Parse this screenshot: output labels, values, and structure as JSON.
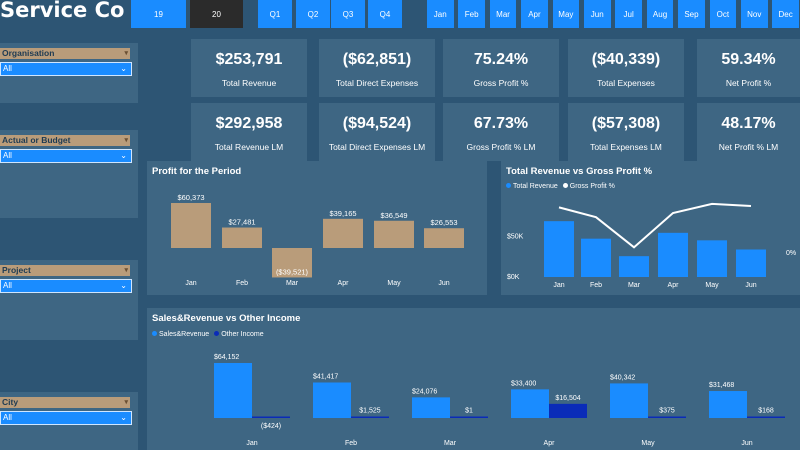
{
  "app": {
    "title": "Service Co"
  },
  "years": [
    "19",
    "20"
  ],
  "quarters": [
    "Q1",
    "Q2",
    "Q3",
    "Q4"
  ],
  "months": [
    "Jan",
    "Feb",
    "Mar",
    "Apr",
    "May",
    "Jun",
    "Jul",
    "Aug",
    "Sep",
    "Oct",
    "Nov",
    "Dec"
  ],
  "slicers": [
    {
      "label": "Organisation",
      "value": "All"
    },
    {
      "label": "Actual or Budget",
      "value": "All"
    },
    {
      "label": "Project",
      "value": "All"
    },
    {
      "label": "City",
      "value": "All"
    }
  ],
  "kpis": [
    {
      "value": "$253,791",
      "label": "Total Revenue"
    },
    {
      "value": "($62,851)",
      "label": "Total Direct Expenses"
    },
    {
      "value": "75.24%",
      "label": "Gross Profit %"
    },
    {
      "value": "($40,339)",
      "label": "Total Expenses"
    },
    {
      "value": "59.34%",
      "label": "Net Profit %"
    },
    {
      "value": "$292,958",
      "label": "Total Revenue LM"
    },
    {
      "value": "($94,524)",
      "label": "Total Direct Expenses LM"
    },
    {
      "value": "67.73%",
      "label": "Gross Profit % LM"
    },
    {
      "value": "($57,308)",
      "label": "Total Expenses LM"
    },
    {
      "value": "48.17%",
      "label": "Net Profit % LM"
    }
  ],
  "colors": {
    "background": "#2d5574",
    "panel": "#3e6683",
    "accent": "#1a8cff",
    "tan": "#b99c7a",
    "navy": "#0a2bb8"
  },
  "chart_data": [
    {
      "type": "bar",
      "title": "Profit for the Period",
      "categories": [
        "Jan",
        "Feb",
        "Mar",
        "Apr",
        "May",
        "Jun"
      ],
      "values": [
        60373,
        27481,
        -39521,
        39165,
        36549,
        26553
      ],
      "data_labels": [
        "$60,373",
        "$27,481",
        "($39,521)",
        "$39,165",
        "$36,549",
        "$26,553"
      ],
      "grid": false
    },
    {
      "type": "bar",
      "title": "Total Revenue vs Gross Profit %",
      "categories": [
        "Jan",
        "Feb",
        "Mar",
        "Apr",
        "May",
        "Jun"
      ],
      "series": [
        {
          "name": "Total Revenue",
          "type": "bar",
          "values": [
            67000,
            46000,
            25000,
            53000,
            44000,
            33000
          ]
        },
        {
          "name": "Gross Profit %",
          "type": "line",
          "values": [
            0.88,
            0.74,
            0.31,
            0.8,
            0.93,
            0.9
          ]
        }
      ],
      "yticks": [
        "$0K",
        "$50K"
      ],
      "y2ticks": [
        "",
        "0%"
      ],
      "ylim": [
        0,
        90000
      ],
      "legend": "top-left"
    },
    {
      "type": "bar",
      "title": "Sales&Revenue vs Other Income",
      "categories": [
        "Jan",
        "Feb",
        "Mar",
        "Apr",
        "May",
        "Jun"
      ],
      "series": [
        {
          "name": "Sales&Revenue",
          "values": [
            64152,
            41417,
            24076,
            33400,
            40342,
            31468
          ],
          "labels": [
            "$64,152",
            "$41,417",
            "$24,076",
            "$33,400",
            "$40,342",
            "$31,468"
          ]
        },
        {
          "name": "Other Income",
          "values": [
            -424,
            1525,
            1,
            16504,
            375,
            168
          ],
          "labels": [
            "($424)",
            "$1,525",
            "$1",
            "$16,504",
            "$375",
            "$168"
          ]
        }
      ],
      "legend": "top-left"
    }
  ]
}
